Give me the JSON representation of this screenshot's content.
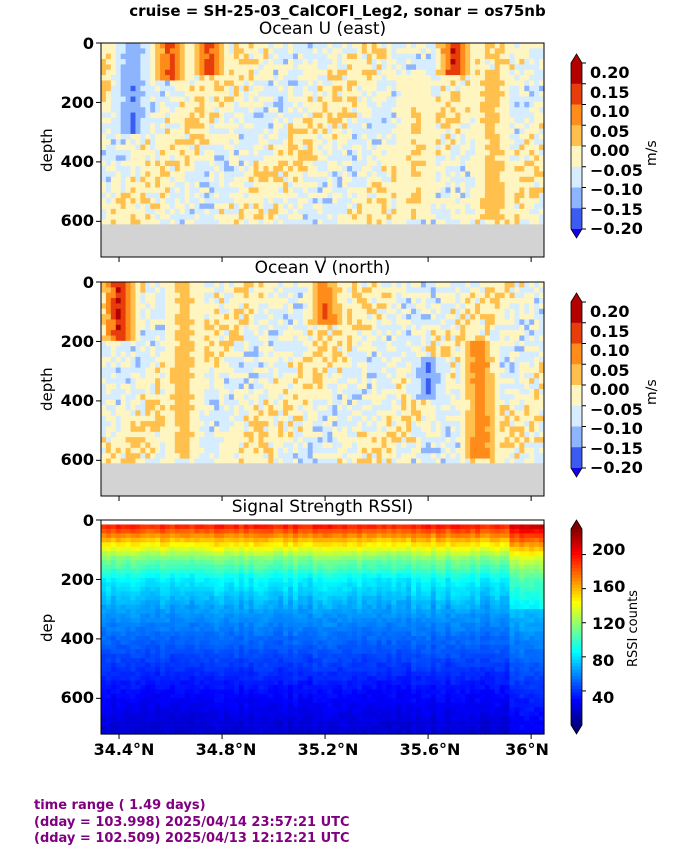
{
  "suptitle": "cruise = SH-25-03_CalCOFI_Leg2,  sonar = os75nb",
  "footer": {
    "line1": "time range ( 1.49 days)",
    "line2": "(dday = 103.998) 2025/04/14 23:57:21 UTC",
    "line3": "(dday = 102.509) 2025/04/13 12:12:21 UTC"
  },
  "chart_data": [
    {
      "type": "heatmap",
      "title": "Ocean U (east)",
      "ylabel": "depth",
      "xlabel": "",
      "ylim": [
        720,
        0
      ],
      "xlim": [
        34.33,
        36.05
      ],
      "y_ticks": [
        "0",
        "200",
        "400",
        "600"
      ],
      "x_ticks": [],
      "bottom_depth": 610,
      "colorbar": {
        "label": "m/s",
        "levels": [
          -0.2,
          -0.15,
          -0.1,
          -0.05,
          0.0,
          0.05,
          0.1,
          0.15,
          0.2
        ],
        "tick_labels": [
          "0.20",
          "0.15",
          "0.10",
          "0.05",
          "0.00",
          "−0.05",
          "−0.10",
          "−0.15",
          "−0.20"
        ],
        "colors": [
          "#1a00e6",
          "#3a5cf0",
          "#8db4ff",
          "#d6ecff",
          "#fff5c0",
          "#ffc04d",
          "#ff8c1a",
          "#e63d0a",
          "#b30000"
        ]
      },
      "features": [
        {
          "lat": 34.6,
          "depth_top": 0,
          "depth_bottom": 120,
          "value": 0.18
        },
        {
          "lat": 34.75,
          "depth_top": 0,
          "depth_bottom": 100,
          "value": 0.18
        },
        {
          "lat": 35.7,
          "depth_top": 0,
          "depth_bottom": 100,
          "value": 0.2
        },
        {
          "lat": 35.85,
          "depth_top": 100,
          "depth_bottom": 600,
          "value": 0.08
        },
        {
          "lat": 35.55,
          "depth_top": 100,
          "depth_bottom": 600,
          "value": 0.05
        },
        {
          "lat": 34.45,
          "depth_top": 0,
          "depth_bottom": 300,
          "value": -0.1
        }
      ]
    },
    {
      "type": "heatmap",
      "title": "Ocean V (north)",
      "ylabel": "depth",
      "xlabel": "",
      "ylim": [
        720,
        0
      ],
      "xlim": [
        34.33,
        36.05
      ],
      "y_ticks": [
        "0",
        "200",
        "400",
        "600"
      ],
      "x_ticks": [],
      "bottom_depth": 610,
      "colorbar": {
        "label": "m/s",
        "levels": [
          -0.2,
          -0.15,
          -0.1,
          -0.05,
          0.0,
          0.05,
          0.1,
          0.15,
          0.2
        ],
        "tick_labels": [
          "0.20",
          "0.15",
          "0.10",
          "0.05",
          "0.00",
          "−0.05",
          "−0.10",
          "−0.15",
          "−0.20"
        ],
        "colors": [
          "#1a00e6",
          "#3a5cf0",
          "#8db4ff",
          "#d6ecff",
          "#fff5c0",
          "#ffc04d",
          "#ff8c1a",
          "#e63d0a",
          "#b30000"
        ]
      },
      "features": [
        {
          "lat": 34.4,
          "depth_top": 0,
          "depth_bottom": 200,
          "value": 0.2
        },
        {
          "lat": 35.2,
          "depth_top": 0,
          "depth_bottom": 150,
          "value": 0.15
        },
        {
          "lat": 35.8,
          "depth_top": 200,
          "depth_bottom": 600,
          "value": 0.15
        },
        {
          "lat": 35.6,
          "depth_top": 250,
          "depth_bottom": 400,
          "value": -0.12
        },
        {
          "lat": 34.65,
          "depth_top": 0,
          "depth_bottom": 600,
          "value": 0.08
        }
      ]
    },
    {
      "type": "heatmap",
      "title": "Signal Strength RSSI)",
      "ylabel": "dep",
      "xlabel": "",
      "ylim": [
        720,
        0
      ],
      "xlim": [
        34.33,
        36.05
      ],
      "y_ticks": [
        "0",
        "200",
        "400",
        "600"
      ],
      "x_ticks": [
        "34.4°N",
        "34.8°N",
        "35.2°N",
        "35.6°N",
        "36°N"
      ],
      "x_tick_values": [
        34.4,
        34.8,
        35.2,
        35.6,
        36.0
      ],
      "colorbar": {
        "label": "RSSI counts",
        "range": [
          0,
          230
        ],
        "tick_values": [
          200,
          160,
          120,
          80,
          40
        ],
        "tick_labels": [
          "200",
          "160",
          "120",
          "80",
          "40"
        ]
      },
      "profile": [
        {
          "depth": 0,
          "value": 210
        },
        {
          "depth": 40,
          "value": 180
        },
        {
          "depth": 80,
          "value": 150
        },
        {
          "depth": 130,
          "value": 115
        },
        {
          "depth": 200,
          "value": 85
        },
        {
          "depth": 300,
          "value": 65
        },
        {
          "depth": 400,
          "value": 52
        },
        {
          "depth": 500,
          "value": 40
        },
        {
          "depth": 600,
          "value": 28
        },
        {
          "depth": 720,
          "value": 18
        }
      ]
    }
  ]
}
